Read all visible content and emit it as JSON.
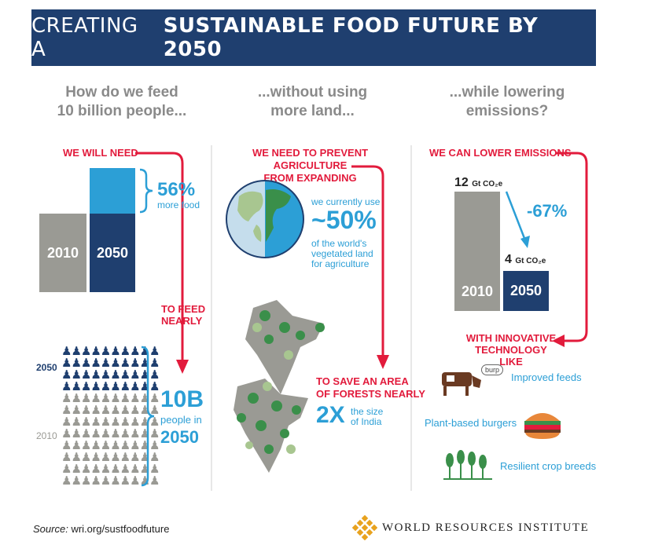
{
  "banner": {
    "title_light": "CREATING A",
    "title_bold": "SUSTAINABLE FOOD FUTURE BY 2050"
  },
  "col1": {
    "heading_line1": "How do we feed",
    "heading_line2": "10 billion people...",
    "we_will_need": "WE WILL NEED",
    "bar_2010": "2010",
    "bar_2050": "2050",
    "pct_value": "56%",
    "pct_label": "more food",
    "to_feed_1": "TO FEED",
    "to_feed_2": "NEARLY",
    "people_2050": "2050",
    "people_2010": "2010",
    "people_value": "10B",
    "people_label_1": "people in",
    "people_label_2": "2050"
  },
  "col2": {
    "heading_line1": "...without using",
    "heading_line2": "more land...",
    "prevent_1": "WE NEED TO PREVENT AGRICULTURE",
    "prevent_2": "FROM EXPANDING",
    "use_label": "we currently use",
    "use_value": "~50%",
    "use_desc_1": "of the world's",
    "use_desc_2": "vegetated land",
    "use_desc_3": "for agriculture",
    "save_1": "TO SAVE AN AREA",
    "save_2": "OF FORESTS NEARLY",
    "save_value": "2X",
    "save_desc_1": "the size",
    "save_desc_2": "of India"
  },
  "col3": {
    "heading_line1": "...while lowering",
    "heading_line2": "emissions?",
    "lower": "WE CAN LOWER EMISSIONS",
    "val_2010": "12",
    "val_2050": "4",
    "unit": "Gt CO₂e",
    "change": "-67%",
    "bar_2010": "2010",
    "bar_2050": "2050",
    "innov_1": "WITH INNOVATIVE",
    "innov_2": "TECHNOLOGY LIKE",
    "burp": "burp",
    "item1": "Improved feeds",
    "item2": "Plant-based burgers",
    "item3": "Resilient crop breeds"
  },
  "footer": {
    "source_label": "Source:",
    "source_url": "wri.org/sustfoodfuture",
    "org": "WORLD RESOURCES INSTITUTE"
  },
  "colors": {
    "navy": "#1f3f6f",
    "blue": "#2c9fd6",
    "red": "#e21b3c",
    "gray": "#9a9a94",
    "green": "#3a8f4a"
  }
}
